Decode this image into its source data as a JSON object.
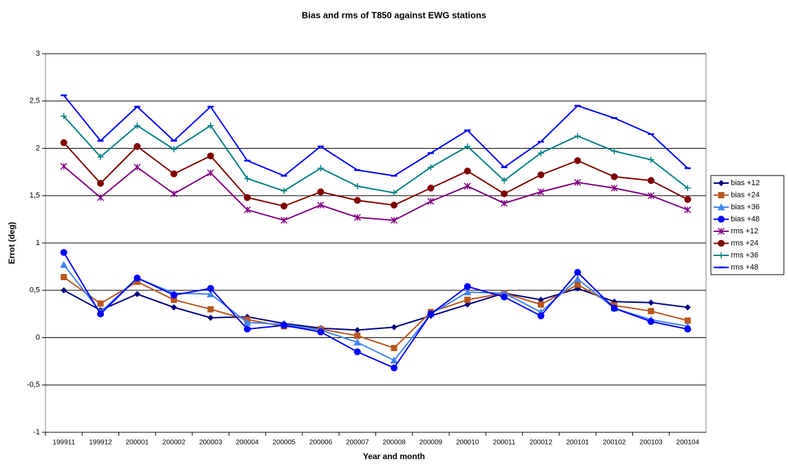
{
  "chart_data": {
    "type": "line",
    "title": "Bias and rms of T850 against EWG stations",
    "xlabel": "Year and month",
    "ylabel": "Errot (deg)",
    "categories": [
      "199911",
      "199912",
      "200001",
      "200002",
      "200003",
      "200004",
      "200005",
      "200006",
      "200007",
      "200008",
      "200009",
      "200010",
      "200011",
      "200012",
      "200101",
      "200102",
      "200103",
      "200104"
    ],
    "ylim": [
      -1,
      3
    ],
    "yticks": [
      {
        "value": 3,
        "label": "3"
      },
      {
        "value": 2.5,
        "label": "2,5"
      },
      {
        "value": 2,
        "label": "2"
      },
      {
        "value": 1.5,
        "label": "1,5"
      },
      {
        "value": 1,
        "label": "1"
      },
      {
        "value": 0.5,
        "label": "0,5"
      },
      {
        "value": 0,
        "label": "0"
      },
      {
        "value": -0.5,
        "label": "-0,5"
      },
      {
        "value": -1,
        "label": "-1"
      }
    ],
    "grid": true,
    "legend": "right",
    "series": [
      {
        "name": "bias +12",
        "color": "#000080",
        "marker": "diamond",
        "values": [
          0.5,
          0.29,
          0.46,
          0.32,
          0.21,
          0.22,
          0.15,
          0.1,
          0.08,
          0.11,
          0.23,
          0.35,
          0.47,
          0.4,
          0.52,
          0.38,
          0.37,
          0.32
        ]
      },
      {
        "name": "bias +24",
        "color": "#b8561e",
        "marker": "square",
        "values": [
          0.64,
          0.36,
          0.59,
          0.4,
          0.3,
          0.19,
          0.12,
          0.09,
          0.02,
          -0.11,
          0.27,
          0.4,
          0.47,
          0.35,
          0.56,
          0.34,
          0.28,
          0.18
        ]
      },
      {
        "name": "bias +36",
        "color": "#3f83f4",
        "marker": "triangle",
        "values": [
          0.77,
          0.27,
          0.63,
          0.47,
          0.46,
          0.16,
          0.14,
          0.08,
          -0.05,
          -0.24,
          0.25,
          0.48,
          0.47,
          0.27,
          0.62,
          0.31,
          0.19,
          0.12
        ]
      },
      {
        "name": "bias +48",
        "color": "#0000ff",
        "marker": "circle",
        "values": [
          0.9,
          0.25,
          0.63,
          0.45,
          0.52,
          0.09,
          0.13,
          0.06,
          -0.15,
          -0.32,
          0.25,
          0.54,
          0.43,
          0.23,
          0.69,
          0.31,
          0.17,
          0.09
        ]
      },
      {
        "name": "rms +12",
        "color": "#800080",
        "marker": "star",
        "values": [
          1.81,
          1.48,
          1.8,
          1.52,
          1.74,
          1.35,
          1.24,
          1.4,
          1.27,
          1.24,
          1.44,
          1.6,
          1.42,
          1.54,
          1.64,
          1.58,
          1.5,
          1.35
        ]
      },
      {
        "name": "rms +24",
        "color": "#800000",
        "marker": "circle",
        "values": [
          2.06,
          1.63,
          2.02,
          1.73,
          1.92,
          1.48,
          1.39,
          1.54,
          1.45,
          1.4,
          1.58,
          1.76,
          1.52,
          1.72,
          1.87,
          1.7,
          1.66,
          1.46
        ]
      },
      {
        "name": "rms +36",
        "color": "#008080",
        "marker": "plus",
        "values": [
          2.34,
          1.91,
          2.24,
          1.99,
          2.24,
          1.68,
          1.55,
          1.79,
          1.6,
          1.53,
          1.8,
          2.02,
          1.66,
          1.95,
          2.13,
          1.97,
          1.88,
          1.58
        ]
      },
      {
        "name": "rms +48",
        "color": "#0000ff",
        "marker": "dash",
        "values": [
          2.56,
          2.08,
          2.44,
          2.08,
          2.44,
          1.87,
          1.71,
          2.02,
          1.77,
          1.71,
          1.95,
          2.19,
          1.8,
          2.07,
          2.45,
          2.32,
          2.15,
          1.79
        ]
      }
    ]
  }
}
